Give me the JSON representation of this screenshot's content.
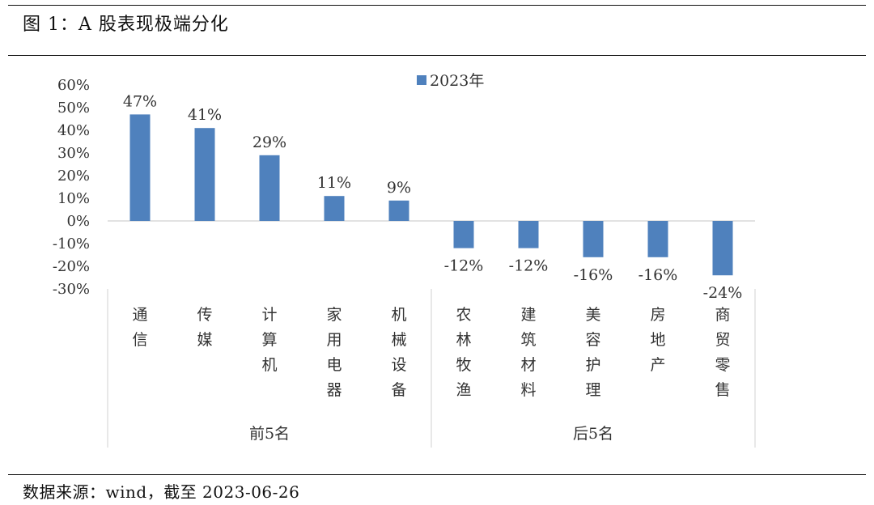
{
  "figure": {
    "title": "图 1：A 股表现极端分化",
    "source": "数据来源：wind，截至 2023-06-26"
  },
  "chart_data": {
    "type": "bar",
    "title": "",
    "legend": {
      "label": "2023年",
      "position": "top-center"
    },
    "series": [
      {
        "name": "2023年",
        "color": "#4F81BD",
        "values": [
          47,
          41,
          29,
          11,
          9,
          -12,
          -12,
          -16,
          -16,
          -24
        ],
        "labels": [
          "47%",
          "41%",
          "29%",
          "11%",
          "9%",
          "-12%",
          "-12%",
          "-16%",
          "-16%",
          "-24%"
        ]
      }
    ],
    "categories": [
      "通信",
      "传媒",
      "计算机",
      "家用电器",
      "机械设备",
      "农林牧渔",
      "建筑材料",
      "美容护理",
      "房地产",
      "商贸零售"
    ],
    "groups": [
      {
        "label": "前5名",
        "count": 5
      },
      {
        "label": "后5名",
        "count": 5
      }
    ],
    "ylim": [
      -30,
      60
    ],
    "yticks": [
      60,
      50,
      40,
      30,
      20,
      10,
      0,
      -10,
      -20,
      -30
    ],
    "ytick_labels": [
      "60%",
      "50%",
      "40%",
      "30%",
      "20%",
      "10%",
      "0%",
      "-10%",
      "-20%",
      "-30%"
    ],
    "xlabel": "",
    "ylabel": "",
    "grid": false
  }
}
